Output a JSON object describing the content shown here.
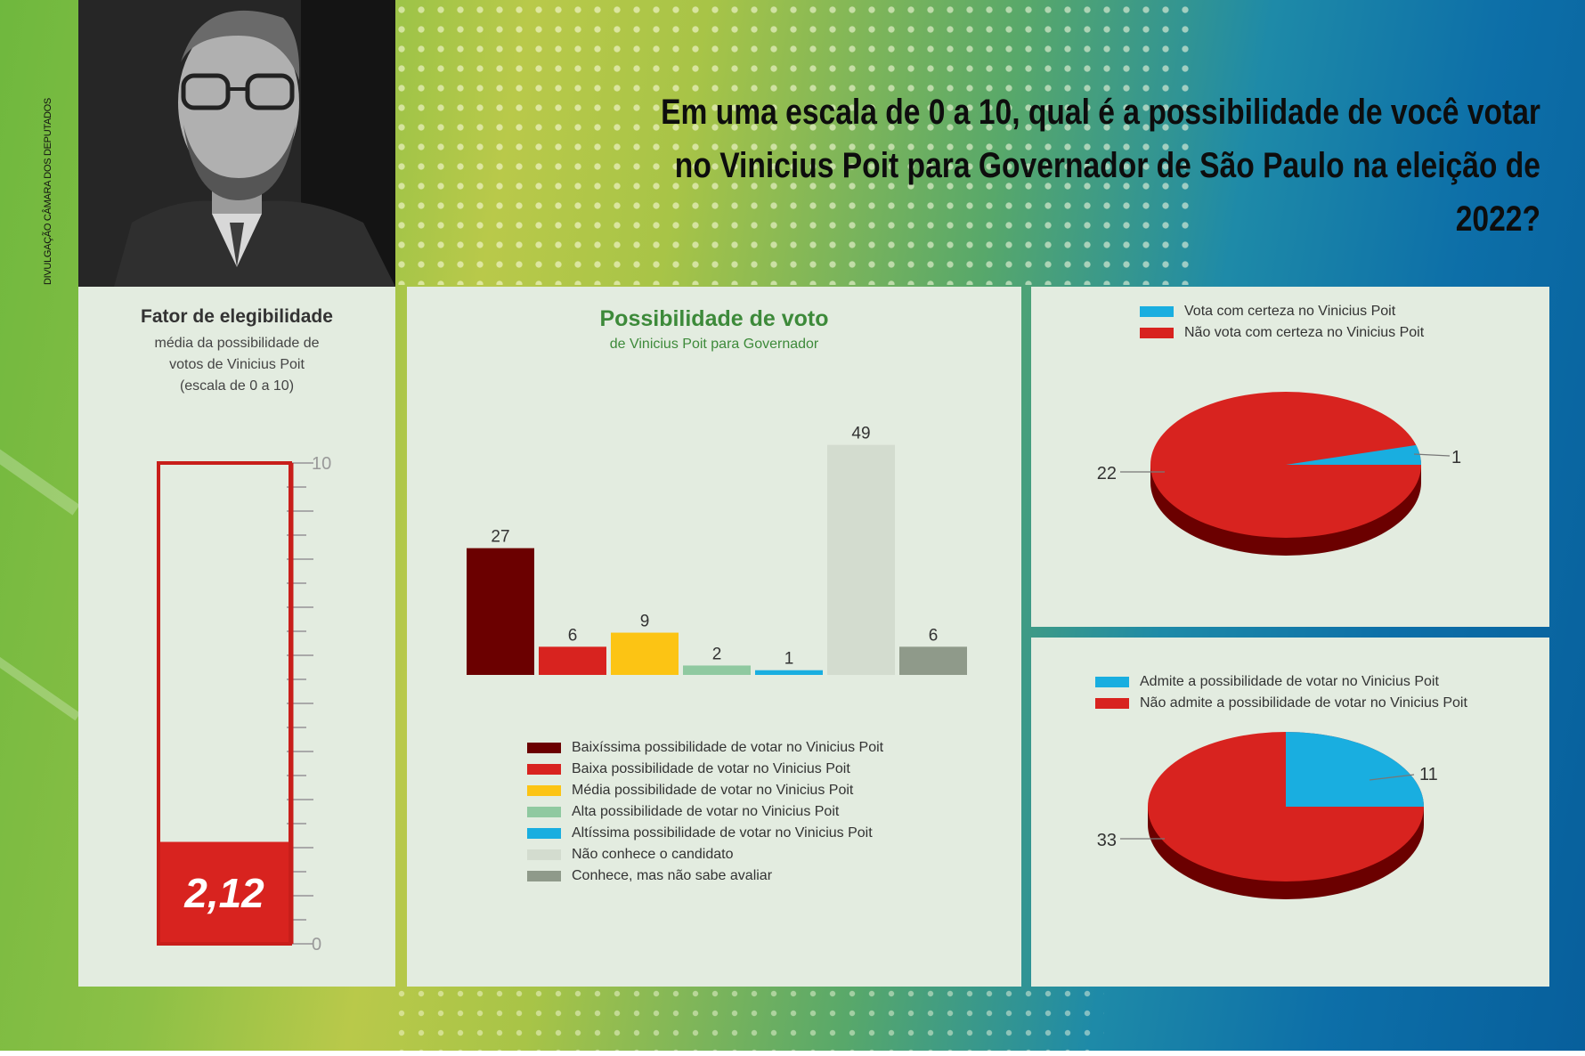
{
  "photo_credit": "DIVULGAÇÃO CÂMARA DOS DEPUTADOS",
  "question": {
    "line1": "Em uma escala de 0 a 10, qual é a possibilidade de você votar",
    "line2": "no Vinicius Poit para Governador de São Paulo na eleição de 2022?"
  },
  "colors": {
    "dark_red": "#6b0000",
    "red": "#d8231f",
    "yellow": "#fcc414",
    "light_green": "#8fc9a0",
    "cyan": "#19aee0",
    "pale": "#d3dccf",
    "gray": "#8f9a8a"
  },
  "chart_data": [
    {
      "type": "gauge",
      "title": "Fator de elegibilidade",
      "subtitle_lines": [
        "média da possibilidade de",
        "votos de Vinicius Poit",
        "(escala de 0 a 10)"
      ],
      "value": 2.12,
      "value_label": "2,12",
      "range": [
        0,
        10
      ],
      "tick_labels": [
        "10",
        "0"
      ]
    },
    {
      "type": "bar",
      "title": "Possibilidade de voto",
      "subtitle": "de Vinicius Poit para Governador",
      "categories": [
        "Baixíssima possibilidade de votar no Vinicius Poit",
        "Baixa possibilidade de votar no Vinicius Poit",
        "Média possibilidade de votar no Vinicius Poit",
        "Alta possibilidade de votar no Vinicius Poit",
        "Altíssima possibilidade de votar no Vinicius Poit",
        "Não conhece o candidato",
        "Conhece, mas não sabe avaliar"
      ],
      "values": [
        27,
        6,
        9,
        2,
        1,
        49,
        6
      ],
      "ylim": [
        0,
        55
      ],
      "legend": "bottom"
    },
    {
      "type": "pie",
      "labels": [
        "Vota com certeza no Vinicius Poit",
        "Não vota com certeza no Vinicius Poit"
      ],
      "values": [
        1,
        22
      ],
      "legend": "top"
    },
    {
      "type": "pie",
      "labels": [
        "Admite a possibilidade de votar no Vinicius Poit",
        "Não admite a possibilidade de votar no Vinicius Poit"
      ],
      "values": [
        11,
        33
      ],
      "legend": "top"
    }
  ]
}
